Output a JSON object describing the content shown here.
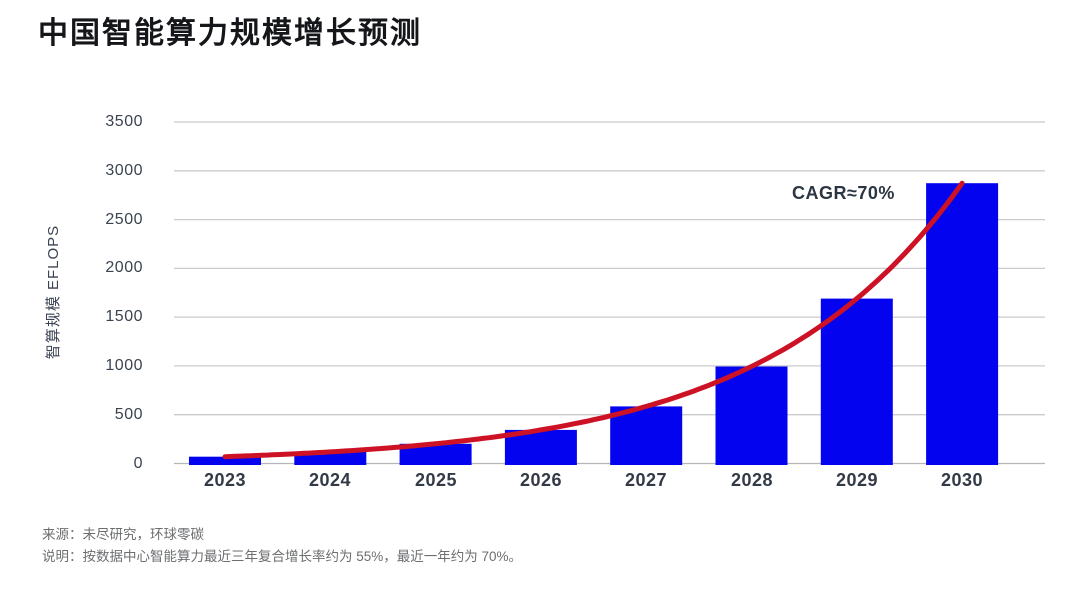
{
  "chart_data": {
    "type": "bar",
    "title": "中国智能算力规模增长预测",
    "categories": [
      "2023",
      "2024",
      "2025",
      "2026",
      "2027",
      "2028",
      "2029",
      "2030"
    ],
    "values": [
      70,
      119,
      202,
      344,
      585,
      994,
      1690,
      2873
    ],
    "xlabel": "",
    "ylabel": "智算规模 EFLOPS",
    "ylim": [
      0,
      3500
    ],
    "yticks": [
      0,
      500,
      1000,
      1500,
      2000,
      2500,
      3000,
      3500
    ],
    "grid": "horizontal",
    "legend": "none",
    "trend_line": {
      "shape": "exponential",
      "start_value": 70,
      "end_value": 2920,
      "label": "CAGR≈70%"
    },
    "colors": {
      "bar": "#0303f0",
      "trend_line": "#cd1225",
      "grid": "#c9cbce",
      "axis": "#b4b7ba",
      "tick_label": "#3b4350",
      "title": "#141619",
      "annotation": "#2c3542",
      "footer_text": "#6c6e70"
    }
  },
  "footer": {
    "source": "来源：未尽研究，环球零碳",
    "note": "说明：按数据中心智能算力最近三年复合增长率约为 55%，最近一年约为 70%。"
  }
}
